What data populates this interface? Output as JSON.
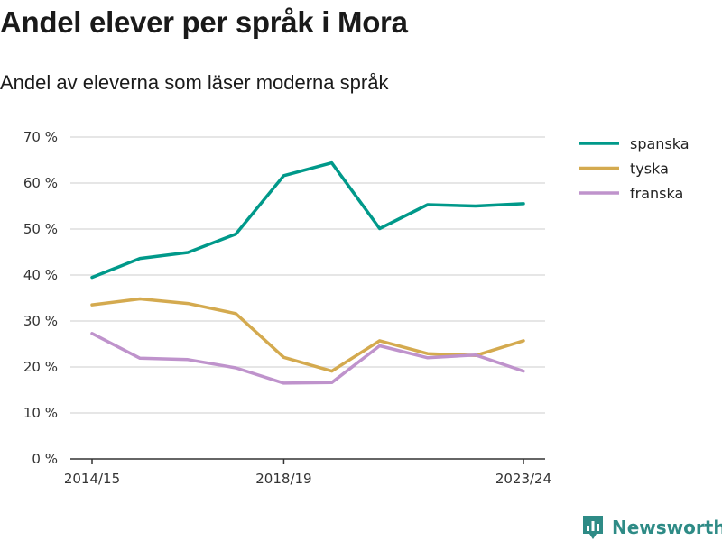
{
  "title": "Andel elever per språk i Mora",
  "subtitle": "Andel av eleverna som läser moderna språk",
  "brand": {
    "name": "Newsworthy",
    "color": "#2e8b86",
    "icon": "bar-chart-badge-icon"
  },
  "chart_data": {
    "type": "line",
    "title": "Andel elever per språk i Mora",
    "subtitle": "Andel av eleverna som läser moderna språk",
    "xlabel": "",
    "ylabel": "",
    "x": [
      "2014/15",
      "2015/16",
      "2016/17",
      "2017/18",
      "2018/19",
      "2019/20",
      "2020/21",
      "2021/22",
      "2022/23",
      "2023/24"
    ],
    "x_tick_labels": [
      "2014/15",
      "2018/19",
      "2023/24"
    ],
    "y_ticks": [
      0,
      10,
      20,
      30,
      40,
      50,
      60,
      70
    ],
    "y_tick_labels": [
      "0 %",
      "10 %",
      "20 %",
      "30 %",
      "40 %",
      "50 %",
      "60 %",
      "70 %"
    ],
    "ylim": [
      0,
      70
    ],
    "grid": "horizontal",
    "legend": "right",
    "series": [
      {
        "name": "spanska",
        "color": "#00998a",
        "values": [
          39.5,
          43.6,
          44.9,
          48.9,
          61.6,
          64.4,
          50.1,
          55.3,
          55.0,
          55.5
        ]
      },
      {
        "name": "tyska",
        "color": "#d4aa4f",
        "values": [
          33.5,
          34.8,
          33.8,
          31.6,
          22.1,
          19.1,
          25.7,
          22.9,
          22.5,
          25.7
        ]
      },
      {
        "name": "franska",
        "color": "#bf93cc",
        "values": [
          27.3,
          21.9,
          21.6,
          19.8,
          16.5,
          16.6,
          24.6,
          22.0,
          22.6,
          19.1
        ]
      }
    ]
  }
}
